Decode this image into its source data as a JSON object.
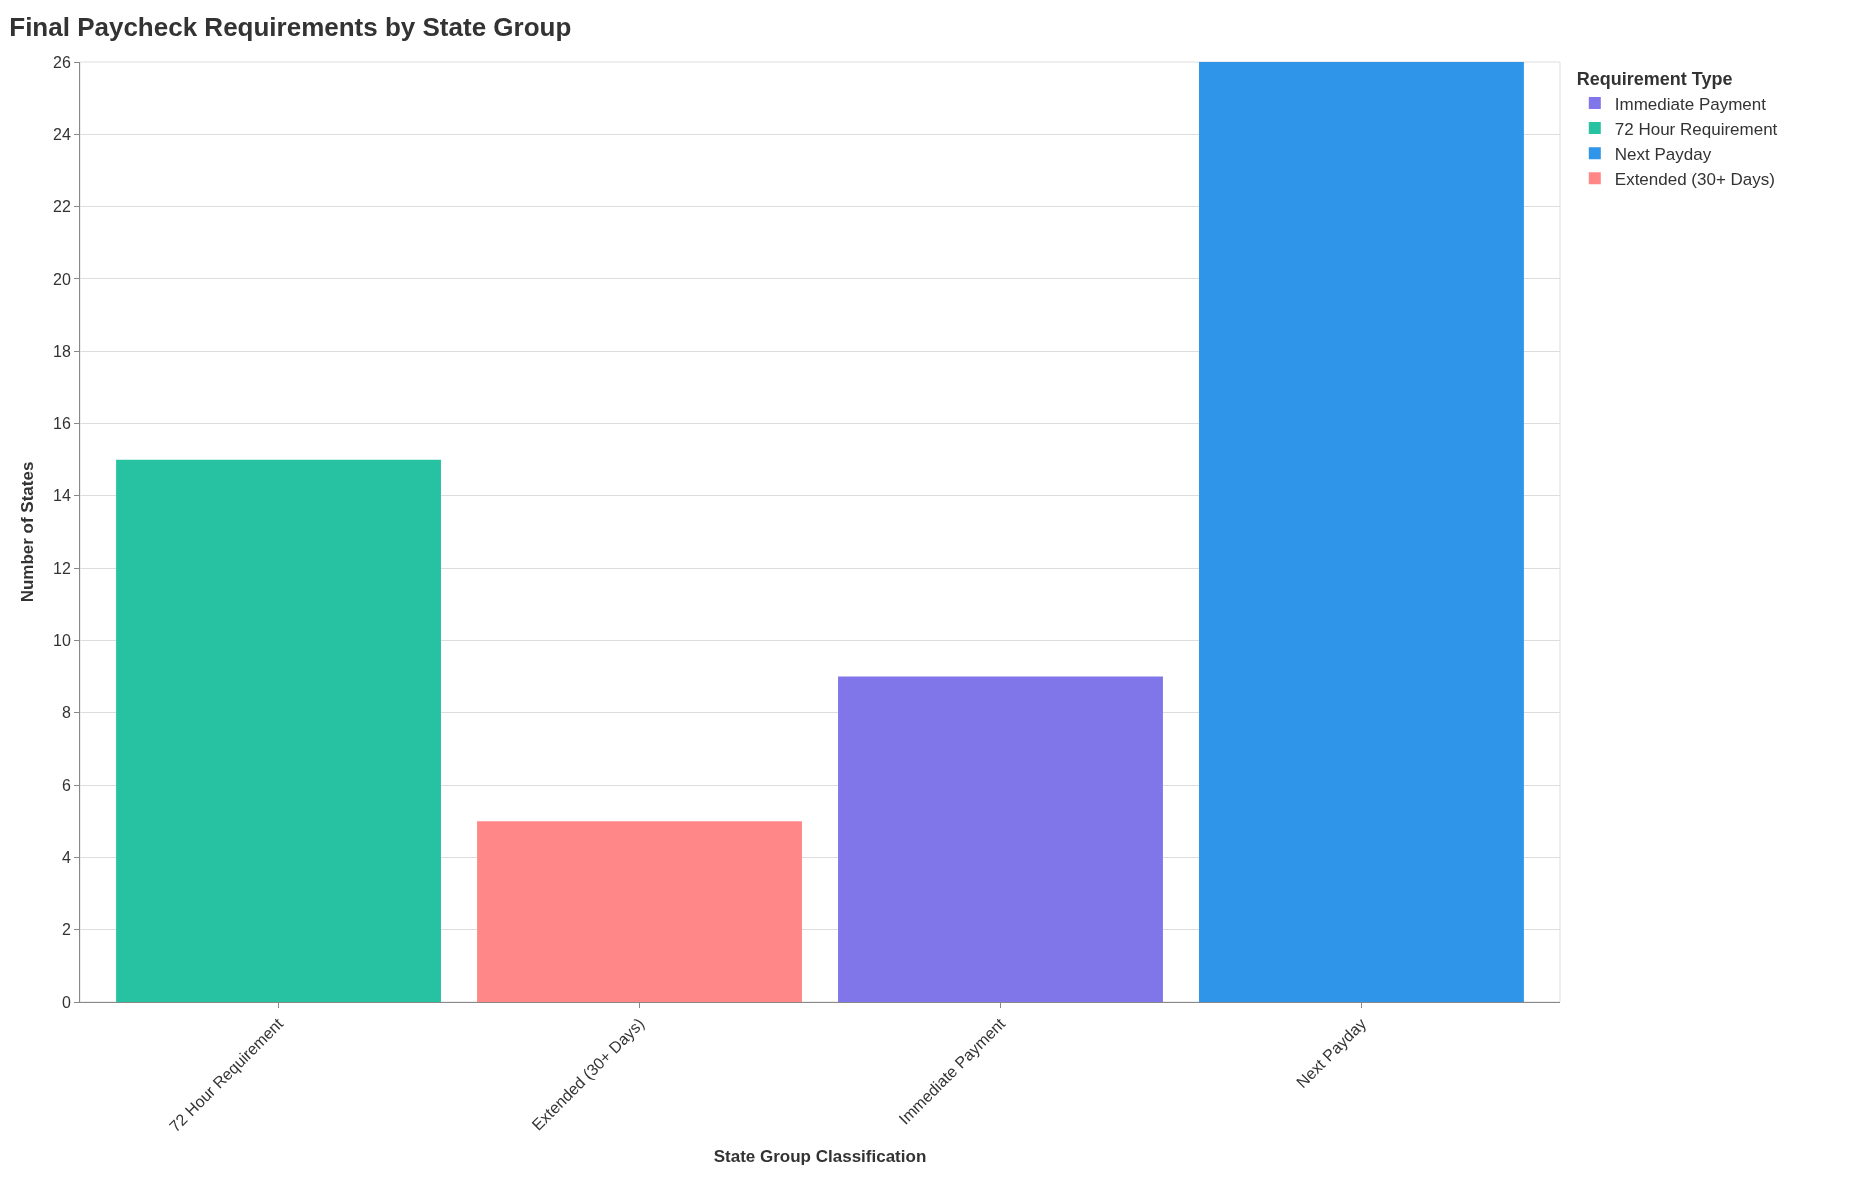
{
  "chart_data": {
    "type": "bar",
    "title": "Final Paycheck Requirements by State Group",
    "xlabel": "State Group Classification",
    "ylabel": "Number of States",
    "legend_title": "Requirement Type",
    "categories": [
      "72 Hour Requirement",
      "Extended (30+ Days)",
      "Immediate Payment",
      "Next Payday"
    ],
    "series": [
      {
        "name": "Immediate Payment",
        "color": "#8075e9",
        "values": [
          null,
          null,
          9,
          null
        ]
      },
      {
        "name": "72 Hour Requirement",
        "color": "#26c2a2",
        "values": [
          15,
          null,
          null,
          null
        ]
      },
      {
        "name": "Next Payday",
        "color": "#2e95e8",
        "values": [
          null,
          null,
          null,
          26
        ]
      },
      {
        "name": "Extended (30+ Days)",
        "color": "#ff8787",
        "values": [
          null,
          5,
          null,
          null
        ]
      }
    ],
    "ylim": [
      0,
      26
    ],
    "yticks": [
      0,
      2,
      4,
      6,
      8,
      10,
      12,
      14,
      16,
      18,
      20,
      22,
      24,
      26
    ],
    "grid": "y",
    "legend": "top right"
  }
}
